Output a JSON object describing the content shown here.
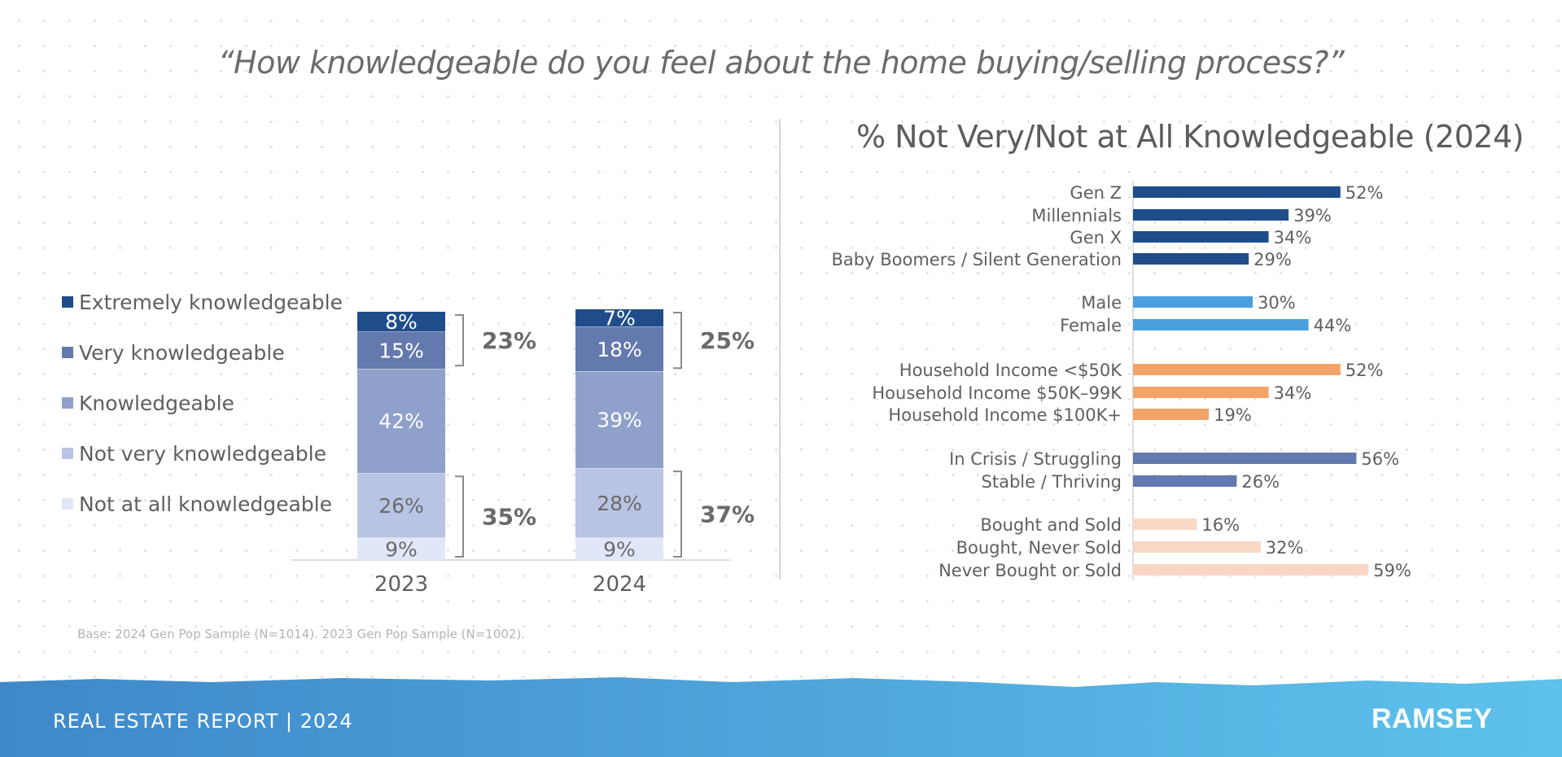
{
  "question": "“How knowledgeable do you feel about the home buying/selling process?”",
  "chart_data": [
    {
      "type": "bar",
      "stacked": true,
      "categories": [
        "2023",
        "2024"
      ],
      "series": [
        {
          "name": "Not at all knowledgeable",
          "values": [
            9,
            9
          ],
          "color": "#e0e7f8",
          "label_color": "#6b6b6b"
        },
        {
          "name": "Not very knowledgeable",
          "values": [
            26,
            28
          ],
          "color": "#b9c4e4",
          "label_color": "#6b6b6b"
        },
        {
          "name": "Knowledgeable",
          "values": [
            42,
            39
          ],
          "color": "#8fa1ca",
          "label_color": "#ffffff"
        },
        {
          "name": "Very knowledgeable",
          "values": [
            15,
            18
          ],
          "color": "#6479ad",
          "label_color": "#ffffff"
        },
        {
          "name": "Extremely knowledgeable",
          "values": [
            8,
            7
          ],
          "color": "#1f4d8c",
          "label_color": "#ffffff"
        }
      ],
      "brackets": [
        {
          "category": "2023",
          "group": "top",
          "label": "23%"
        },
        {
          "category": "2023",
          "group": "bottom",
          "label": "35%"
        },
        {
          "category": "2024",
          "group": "top",
          "label": "25%"
        },
        {
          "category": "2024",
          "group": "bottom",
          "label": "37%"
        }
      ],
      "legend": "left"
    },
    {
      "type": "bar",
      "orientation": "horizontal",
      "title": "% Not Very/Not at All Knowledgeable (2024)",
      "categories": [
        "Gen Z",
        "Millennials",
        "Gen X",
        "Baby Boomers / Silent Generation",
        "Male",
        "Female",
        "Household Income <$50K",
        "Household Income $50K–99K",
        "Household Income $100K+",
        "In Crisis / Struggling",
        "Stable / Thriving",
        "Bought and Sold",
        "Bought, Never Sold",
        "Never Bought or Sold"
      ],
      "values": [
        52,
        39,
        34,
        29,
        30,
        44,
        52,
        34,
        19,
        56,
        26,
        16,
        32,
        59
      ],
      "value_labels": [
        "52%",
        "39%",
        "34%",
        "29%",
        "30%",
        "44%",
        "52%",
        "34%",
        "19%",
        "56%",
        "26%",
        "16%",
        "32%",
        "59%"
      ],
      "colors": [
        "#1f4d8c",
        "#1f4d8c",
        "#1f4d8c",
        "#1f4d8c",
        "#4a9fdc",
        "#4a9fdc",
        "#f2a468",
        "#f2a468",
        "#f2a468",
        "#6479ad",
        "#6479ad",
        "#f8d8c4",
        "#f8d8c4",
        "#f8d8c4"
      ]
    }
  ],
  "footnote": "Base: 2024 Gen Pop Sample (N=1014). 2023 Gen Pop Sample (N=1002).",
  "footer": {
    "report": "REAL ESTATE REPORT | 2024",
    "logo": "RAMSEY"
  },
  "colors": {
    "footer_start": "#3f88c9",
    "footer_end": "#5ec2ec"
  }
}
